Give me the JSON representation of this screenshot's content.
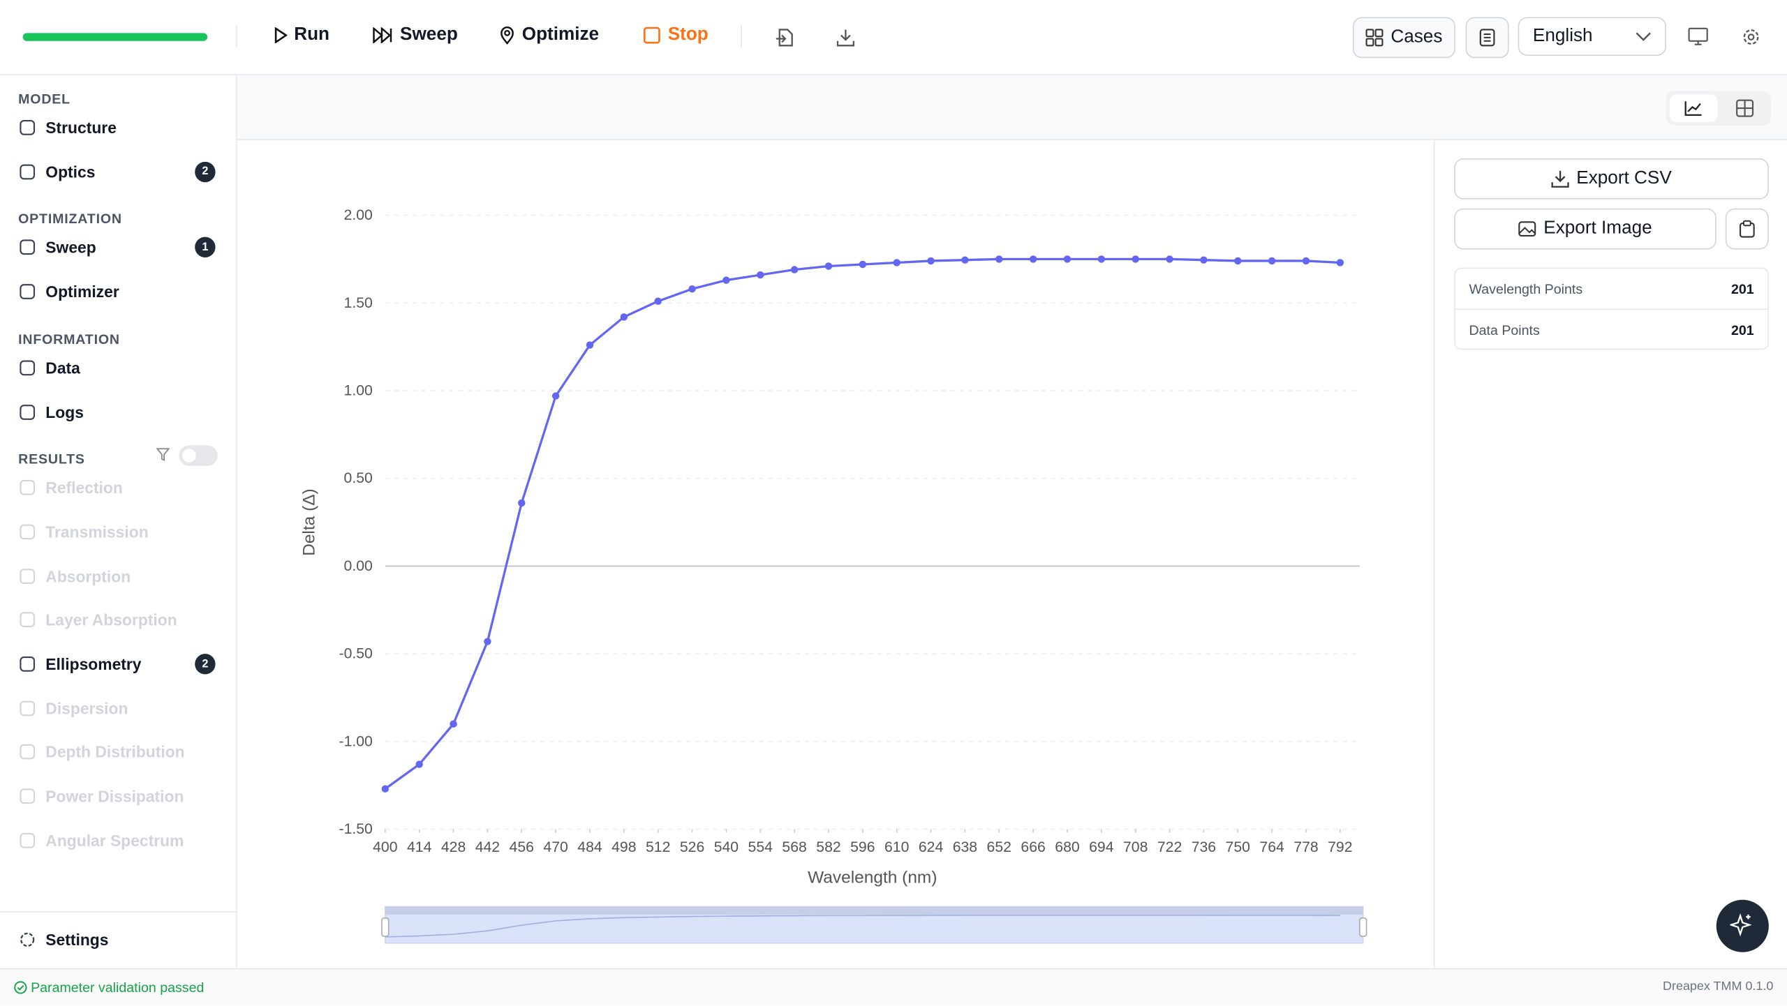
{
  "toolbar": {
    "run": "Run",
    "sweep": "Sweep",
    "optimize": "Optimize",
    "stop": "Stop",
    "cases": "Cases",
    "language": "English"
  },
  "sidebar": {
    "sections": [
      {
        "title": "MODEL",
        "items": [
          {
            "label": "Structure"
          },
          {
            "label": "Optics",
            "badge": "2"
          }
        ]
      },
      {
        "title": "OPTIMIZATION",
        "items": [
          {
            "label": "Sweep",
            "badge": "1"
          },
          {
            "label": "Optimizer"
          }
        ]
      },
      {
        "title": "INFORMATION",
        "items": [
          {
            "label": "Data"
          },
          {
            "label": "Logs"
          }
        ]
      },
      {
        "title": "RESULTS",
        "items": [
          {
            "label": "Reflection",
            "disabled": true
          },
          {
            "label": "Transmission",
            "disabled": true
          },
          {
            "label": "Absorption",
            "disabled": true
          },
          {
            "label": "Layer Absorption",
            "disabled": true
          },
          {
            "label": "Ellipsometry",
            "badge": "2"
          },
          {
            "label": "Dispersion",
            "disabled": true
          },
          {
            "label": "Depth Distribution",
            "disabled": true
          },
          {
            "label": "Power Dissipation",
            "disabled": true
          },
          {
            "label": "Angular Spectrum",
            "disabled": true
          }
        ]
      }
    ],
    "settings": "Settings"
  },
  "panel": {
    "export_csv": "Export CSV",
    "export_image": "Export Image",
    "stats": [
      {
        "label": "Wavelength Points",
        "value": "201"
      },
      {
        "label": "Data Points",
        "value": "201"
      }
    ]
  },
  "status": {
    "message": "Parameter validation passed",
    "version": "Dreapex TMM 0.1.0"
  },
  "chart_data": {
    "type": "line",
    "xlabel": "Wavelength (nm)",
    "ylabel": "Delta (Δ)",
    "color": "#6366f1",
    "grid": true,
    "x": [
      400,
      414,
      428,
      442,
      456,
      470,
      484,
      498,
      512,
      526,
      540,
      554,
      568,
      582,
      596,
      610,
      624,
      638,
      652,
      666,
      680,
      694,
      708,
      722,
      736,
      750,
      764,
      778,
      792
    ],
    "values": [
      -1.27,
      -1.13,
      -0.9,
      -0.43,
      0.36,
      0.97,
      1.26,
      1.42,
      1.51,
      1.58,
      1.63,
      1.66,
      1.69,
      1.71,
      1.72,
      1.73,
      1.74,
      1.745,
      1.75,
      1.75,
      1.75,
      1.75,
      1.75,
      1.75,
      1.745,
      1.74,
      1.74,
      1.74,
      1.73
    ],
    "xlim": [
      400,
      800
    ],
    "xticks": [
      400,
      414,
      428,
      442,
      456,
      470,
      484,
      498,
      512,
      526,
      540,
      554,
      568,
      582,
      596,
      610,
      624,
      638,
      652,
      666,
      680,
      694,
      708,
      722,
      736,
      750,
      764,
      778,
      792
    ],
    "ylim": [
      -1.5,
      2.0
    ],
    "yticks": [
      {
        "value": -1.5,
        "label": "-1.50"
      },
      {
        "value": -1.0,
        "label": "-1.00"
      },
      {
        "value": -0.5,
        "label": "-0.50"
      },
      {
        "value": 0,
        "label": "0.00"
      },
      {
        "value": 0.5,
        "label": "0.50"
      },
      {
        "value": 1.0,
        "label": "1.00"
      },
      {
        "value": 1.5,
        "label": "1.50"
      },
      {
        "value": 2.0,
        "label": "2.00"
      }
    ]
  }
}
